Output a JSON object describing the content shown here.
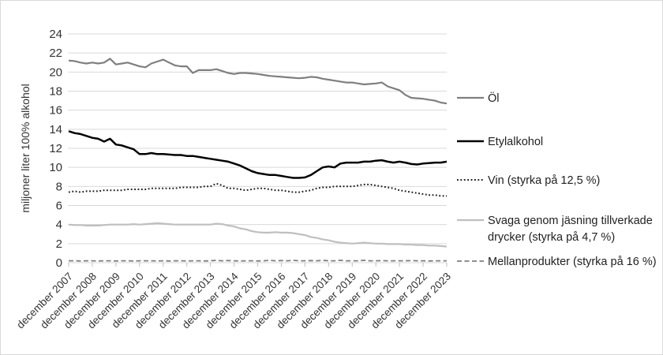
{
  "page": {
    "background": "#ffffff",
    "border_color": "#d9d9d9",
    "gridline_color": "#d9d9d9",
    "tick_color": "#bfbfbf"
  },
  "chart_data": {
    "type": "line",
    "title": "",
    "xlabel": "",
    "ylabel": "miljoner liter 100% alkohol",
    "ylim": [
      0,
      24
    ],
    "ytick_step": 2,
    "ytick_labels": [
      "0",
      "2",
      "4",
      "6",
      "8",
      "10",
      "12",
      "14",
      "16",
      "18",
      "20",
      "22",
      "24"
    ],
    "grid": "horizontal",
    "legend_position": "right",
    "x_unit": "quarterly samples from december 2007 to december 2023",
    "categories": [
      "december 2007",
      "december 2008",
      "december 2009",
      "december 2010",
      "december 2011",
      "december 2012",
      "december 2013",
      "december 2014",
      "december 2015",
      "december 2016",
      "december 2017",
      "december 2018",
      "december 2019",
      "december 2020",
      "december 2021",
      "december 2022",
      "december 2023"
    ],
    "series": [
      {
        "name": "Öl",
        "color": "#7f7f7f",
        "style": "solid",
        "width": 2.2,
        "values": [
          21.2,
          21.15,
          21.0,
          20.9,
          21.0,
          20.9,
          21.0,
          21.4,
          20.8,
          20.9,
          21.0,
          20.8,
          20.6,
          20.5,
          20.9,
          21.1,
          21.3,
          21.0,
          20.7,
          20.6,
          20.6,
          19.9,
          20.2,
          20.2,
          20.2,
          20.3,
          20.1,
          19.9,
          19.8,
          19.9,
          19.9,
          19.85,
          19.8,
          19.7,
          19.6,
          19.55,
          19.5,
          19.45,
          19.4,
          19.35,
          19.4,
          19.5,
          19.45,
          19.3,
          19.2,
          19.1,
          19.0,
          18.9,
          18.9,
          18.8,
          18.7,
          18.75,
          18.8,
          18.9,
          18.5,
          18.3,
          18.1,
          17.6,
          17.3,
          17.25,
          17.2,
          17.1,
          17.0,
          16.8,
          16.7
        ]
      },
      {
        "name": "Etylalkohol",
        "color": "#000000",
        "style": "solid",
        "width": 2.5,
        "values": [
          13.8,
          13.6,
          13.5,
          13.3,
          13.1,
          13.0,
          12.7,
          13.0,
          12.4,
          12.3,
          12.1,
          11.9,
          11.4,
          11.4,
          11.5,
          11.4,
          11.4,
          11.35,
          11.3,
          11.3,
          11.2,
          11.2,
          11.1,
          11.0,
          10.9,
          10.8,
          10.7,
          10.6,
          10.4,
          10.2,
          9.9,
          9.6,
          9.4,
          9.3,
          9.2,
          9.2,
          9.1,
          9.0,
          8.9,
          8.9,
          8.95,
          9.2,
          9.6,
          10.0,
          10.1,
          10.0,
          10.4,
          10.5,
          10.5,
          10.5,
          10.6,
          10.6,
          10.7,
          10.75,
          10.6,
          10.5,
          10.6,
          10.5,
          10.35,
          10.3,
          10.4,
          10.45,
          10.5,
          10.5,
          10.6
        ]
      },
      {
        "name": "Vin (styrka på 12,5 %)",
        "color": "#1a1a1a",
        "style": "dotted",
        "width": 2,
        "values": [
          7.4,
          7.5,
          7.4,
          7.5,
          7.5,
          7.5,
          7.6,
          7.6,
          7.6,
          7.6,
          7.7,
          7.7,
          7.7,
          7.7,
          7.8,
          7.8,
          7.8,
          7.8,
          7.8,
          7.9,
          7.9,
          7.9,
          7.9,
          8.0,
          8.0,
          8.3,
          8.1,
          7.8,
          7.8,
          7.7,
          7.6,
          7.7,
          7.8,
          7.8,
          7.7,
          7.6,
          7.6,
          7.5,
          7.4,
          7.4,
          7.5,
          7.6,
          7.8,
          7.9,
          7.9,
          8.0,
          8.0,
          8.0,
          8.0,
          8.1,
          8.2,
          8.2,
          8.1,
          8.0,
          7.9,
          7.8,
          7.6,
          7.5,
          7.4,
          7.3,
          7.2,
          7.1,
          7.1,
          7.0,
          7.0
        ]
      },
      {
        "name": "Svaga genom jäsning tillverkade drycker (styrka på 4,7 %)",
        "color": "#bfbfbf",
        "style": "solid",
        "width": 2.2,
        "values": [
          4.0,
          3.95,
          3.95,
          3.9,
          3.9,
          3.9,
          3.95,
          4.0,
          4.0,
          4.0,
          4.0,
          4.05,
          4.0,
          4.05,
          4.1,
          4.15,
          4.1,
          4.05,
          4.0,
          4.0,
          4.0,
          4.0,
          4.0,
          4.0,
          4.0,
          4.1,
          4.05,
          3.9,
          3.8,
          3.6,
          3.5,
          3.3,
          3.2,
          3.15,
          3.15,
          3.2,
          3.15,
          3.15,
          3.1,
          3.0,
          2.9,
          2.7,
          2.6,
          2.45,
          2.35,
          2.2,
          2.1,
          2.05,
          2.0,
          2.05,
          2.1,
          2.05,
          2.0,
          2.0,
          1.95,
          1.95,
          1.95,
          1.9,
          1.9,
          1.85,
          1.85,
          1.8,
          1.8,
          1.75,
          1.7
        ]
      },
      {
        "name": "Mellanprodukter (styrka på 16 %)",
        "color": "#7f7f7f",
        "style": "dashed",
        "width": 1.8,
        "values": [
          0.2,
          0.2,
          0.18,
          0.2,
          0.2,
          0.18,
          0.2,
          0.2,
          0.18,
          0.2,
          0.2,
          0.18,
          0.2,
          0.2,
          0.2,
          0.18,
          0.2,
          0.18,
          0.2,
          0.2,
          0.18,
          0.2,
          0.2,
          0.18,
          0.2,
          0.25,
          0.2,
          0.22,
          0.2,
          0.18,
          0.2,
          0.2,
          0.18,
          0.2,
          0.25,
          0.2,
          0.22,
          0.2,
          0.25,
          0.2,
          0.2,
          0.22,
          0.2,
          0.25,
          0.2,
          0.2,
          0.25,
          0.2,
          0.2,
          0.2,
          0.25,
          0.2,
          0.2,
          0.22,
          0.2,
          0.2,
          0.2,
          0.2,
          0.22,
          0.2,
          0.2,
          0.18,
          0.2,
          0.2,
          0.2
        ]
      }
    ]
  },
  "legend": {
    "items": [
      {
        "line1": "Öl",
        "line2": ""
      },
      {
        "line1": "Etylalkohol",
        "line2": ""
      },
      {
        "line1": "Vin (styrka på 12,5 %)",
        "line2": ""
      },
      {
        "line1": "Svaga genom jäsning tillverkade",
        "line2": "drycker (styrka på 4,7 %)"
      },
      {
        "line1": "Mellanprodukter (styrka på 16 %)",
        "line2": ""
      }
    ]
  }
}
